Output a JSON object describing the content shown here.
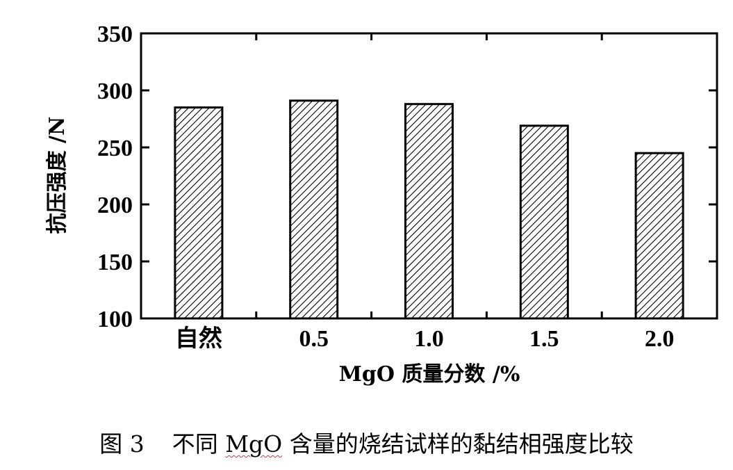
{
  "chart_data": {
    "type": "bar",
    "categories": [
      "自然",
      "0.5",
      "1.0",
      "1.5",
      "2.0"
    ],
    "values": [
      285,
      291,
      288,
      269,
      245
    ],
    "xlabel": "MgO 质量分数 /%",
    "ylabel": "抗压强度 /N",
    "ylim": [
      100,
      350
    ],
    "yticks": [
      100,
      150,
      200,
      250,
      300,
      350
    ],
    "grid": false,
    "bar_fill": "diagonal-hatch"
  },
  "caption": {
    "figure": "图 3",
    "text_before": "不同 ",
    "highlight": "MgO",
    "text_after": " 含量的烧结试样的黏结相强度比较"
  }
}
